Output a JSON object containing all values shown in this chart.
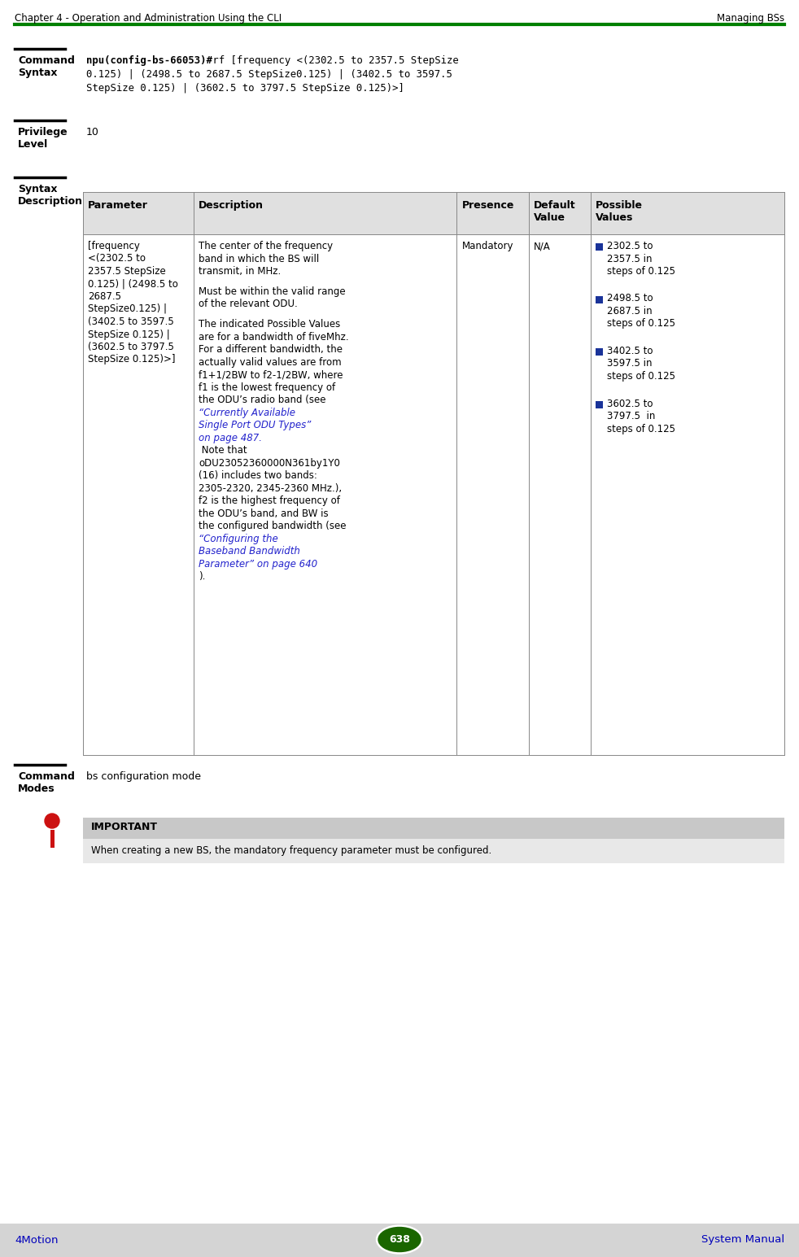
{
  "header_left": "Chapter 4 - Operation and Administration Using the CLI",
  "header_right": "Managing BSs",
  "header_line_color": "#008000",
  "footer_left": "4Motion",
  "footer_center": "638",
  "footer_right": "System Manual",
  "footer_bg": "#d4d4d4",
  "footer_text_color": "#0000BB",
  "footer_ellipse_color": "#1a6600",
  "section1_label": "Command\nSyntax",
  "section1_bold": "npu(config-bs-66053)#",
  "section2_label": "Privilege\nLevel",
  "section2_value": "10",
  "section3_label": "Syntax\nDescription",
  "table_headers": [
    "Parameter",
    "Description",
    "Presence",
    "Default\nValue",
    "Possible\nValues"
  ],
  "param_cell_lines": [
    "[frequency",
    "<(2302.5 to",
    "2357.5 StepSize",
    "0.125) | (2498.5 to",
    "2687.5",
    "StepSize0.125) |",
    "(3402.5 to 3597.5",
    "StepSize 0.125) |",
    "(3602.5 to 3797.5",
    "StepSize 0.125)>]"
  ],
  "desc_lines": [
    {
      "text": "The center of the frequency",
      "style": "normal"
    },
    {
      "text": "band in which the BS will",
      "style": "normal"
    },
    {
      "text": "transmit, in MHz.",
      "style": "normal"
    },
    {
      "text": "",
      "style": "normal"
    },
    {
      "text": "Must be within the valid range",
      "style": "normal"
    },
    {
      "text": "of the relevant ODU.",
      "style": "normal"
    },
    {
      "text": "",
      "style": "normal"
    },
    {
      "text": "The indicated Possible Values",
      "style": "normal"
    },
    {
      "text": "are for a bandwidth of fiveMhz.",
      "style": "normal"
    },
    {
      "text": "For a different bandwidth, the",
      "style": "normal"
    },
    {
      "text": "actually valid values are from",
      "style": "normal"
    },
    {
      "text": "f1+1/2BW to f2-1/2BW, where",
      "style": "normal"
    },
    {
      "text": "f1 is the lowest frequency of",
      "style": "normal"
    },
    {
      "text": "the ODU’s radio band (see",
      "style": "normal"
    },
    {
      "text": "“Currently Available",
      "style": "link"
    },
    {
      "text": "Single Port ODU Types”",
      "style": "link"
    },
    {
      "text": "on page 487.",
      "style": "link"
    },
    {
      "text": " Note that",
      "style": "normal"
    },
    {
      "text": "oDU23052360000N361by1Y0",
      "style": "normal"
    },
    {
      "text": "(16) includes two bands:",
      "style": "normal"
    },
    {
      "text": "2305-2320, 2345-2360 MHz.),",
      "style": "normal"
    },
    {
      "text": "f2 is the highest frequency of",
      "style": "normal"
    },
    {
      "text": "the ODU’s band, and BW is",
      "style": "normal"
    },
    {
      "text": "the configured bandwidth (see",
      "style": "normal"
    },
    {
      "text": "“Configuring the",
      "style": "link"
    },
    {
      "text": "Baseband Bandwidth",
      "style": "link"
    },
    {
      "text": "Parameter” on page 640",
      "style": "link"
    },
    {
      "text": ").",
      "style": "normal"
    }
  ],
  "presence_cell": "Mandatory",
  "default_cell": "N/A",
  "possible_values": [
    [
      "2302.5 to",
      "2357.5 in",
      "steps of 0.125"
    ],
    [
      "2498.5 to",
      "2687.5 in",
      "steps of 0.125"
    ],
    [
      "3402.5 to",
      "3597.5 in",
      "steps of 0.125"
    ],
    [
      "3602.5 to",
      "3797.5  in",
      "steps of 0.125"
    ]
  ],
  "bullet_color": "#1a3399",
  "section4_label": "Command\nModes",
  "section4_value": "bs configuration mode",
  "important_title": "IMPORTANT",
  "important_title_bg": "#c8c8c8",
  "important_body_bg": "#e8e8e8",
  "important_text": "When creating a new BS, the mandatory frequency parameter must be configured.",
  "icon_head_color": "#cc1111",
  "icon_body_color": "#cc1111",
  "link_color": "#2222cc",
  "table_header_bg": "#e0e0e0",
  "table_border_color": "#888888",
  "bg_color": "#ffffff",
  "text_color": "#000000",
  "mono_line1_suffix": " rf [frequency <(2302.5 to 2357.5 StepSize",
  "mono_line2": "0.125) | (2498.5 to 2687.5 StepSize0.125) | (3402.5 to 3597.5",
  "mono_line3": "StepSize 0.125) | (3602.5 to 3797.5 StepSize 0.125)>]"
}
